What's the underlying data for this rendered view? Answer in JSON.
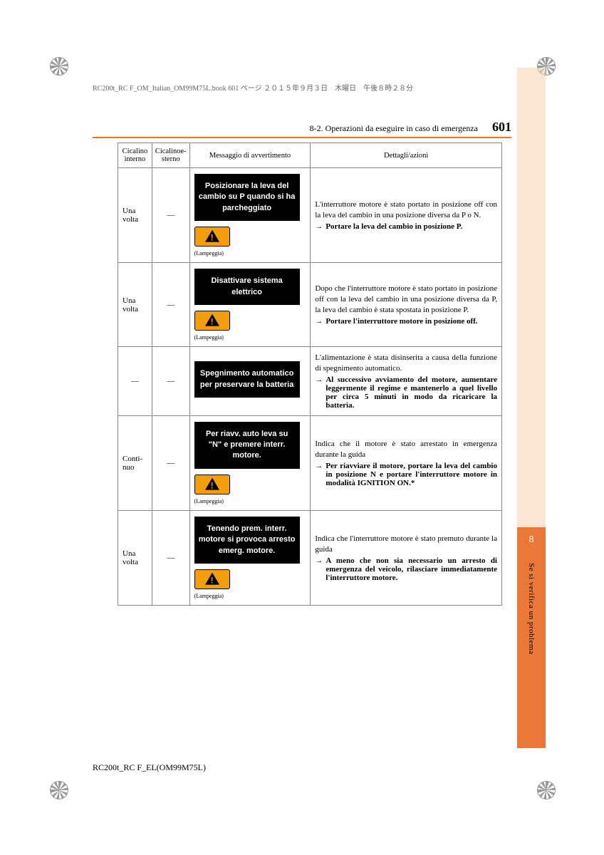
{
  "meta": {
    "header_line": "RC200t_RC F_OM_Italian_OM99M75L.book  601 ページ  ２０１５年９月３日　木曜日　午後８時２８分",
    "section": "8-2. Operazioni da eseguire in caso di emergenza",
    "page_number": "601",
    "footer": "RC200t_RC F_EL(OM99M75L)"
  },
  "sidebar": {
    "chapter": "8",
    "label": "Se si verifica un problema",
    "bg_color": "#ec7838",
    "light_color": "#f9d5b8"
  },
  "table": {
    "headers": {
      "col1": "Cicalino interno",
      "col2": "Cicalinoe-sterno",
      "col3": "Messaggio di avvertimento",
      "col4": "Dettagli/azioni"
    },
    "lampeggia_label": "(Lampeggia)",
    "rows": [
      {
        "buzzer1": "Una volta",
        "buzzer2": "—",
        "message": "Posizionare la leva del cambio su P quando si ha parcheggiato",
        "has_icon": true,
        "details": "L'interruttore motore è stato portato in posizione off con la leva del cambio in una posizione diversa da P o N.",
        "action": "Portare la leva del cambio in posizione P."
      },
      {
        "buzzer1": "Una volta",
        "buzzer2": "—",
        "message": "Disattivare sistema elettrico",
        "has_icon": true,
        "details": "Dopo che l'interruttore motore è stato portato in posizione off con la leva del cambio in una posizione diversa da P, la leva del cambio è stata spostata in posizione P.",
        "action": "Portare l'interruttore motore in posizione off."
      },
      {
        "buzzer1": "—",
        "buzzer2": "—",
        "message": "Spegnimento automatico per preservare la batteria",
        "has_icon": false,
        "details": "L'alimentazione è stata disinserita a causa della funzione di spegnimento automatico.",
        "action": "Al successivo avviamento del motore, aumentare leggermente il regime e mantenerlo a quel livello per circa 5 minuti in modo da ricaricare la batteria."
      },
      {
        "buzzer1": "Conti-nuo",
        "buzzer2": "—",
        "message": "Per riavv. auto leva su \"N\" e premere interr. motore.",
        "has_icon": true,
        "details": "Indica che il motore è stato arrestato in emergenza durante la guida",
        "action": "Per riavviare il motore, portare la leva del cambio in posizione N e portare l'interruttore motore in modalità IGNITION ON.*"
      },
      {
        "buzzer1": "Una volta",
        "buzzer2": "—",
        "message": "Tenendo prem. interr. motore si provoca arresto emerg. motore.",
        "has_icon": true,
        "details": "Indica che l'interruttore motore è stato premuto durante la guida",
        "action": "A meno che non sia necessario un arresto di emergenza del veicolo, rilasciare immediatamente l'interruttore motore."
      }
    ]
  },
  "colors": {
    "rule": "#f97316",
    "warning_icon_bg": "#f59e0b",
    "table_border": "#888888"
  }
}
